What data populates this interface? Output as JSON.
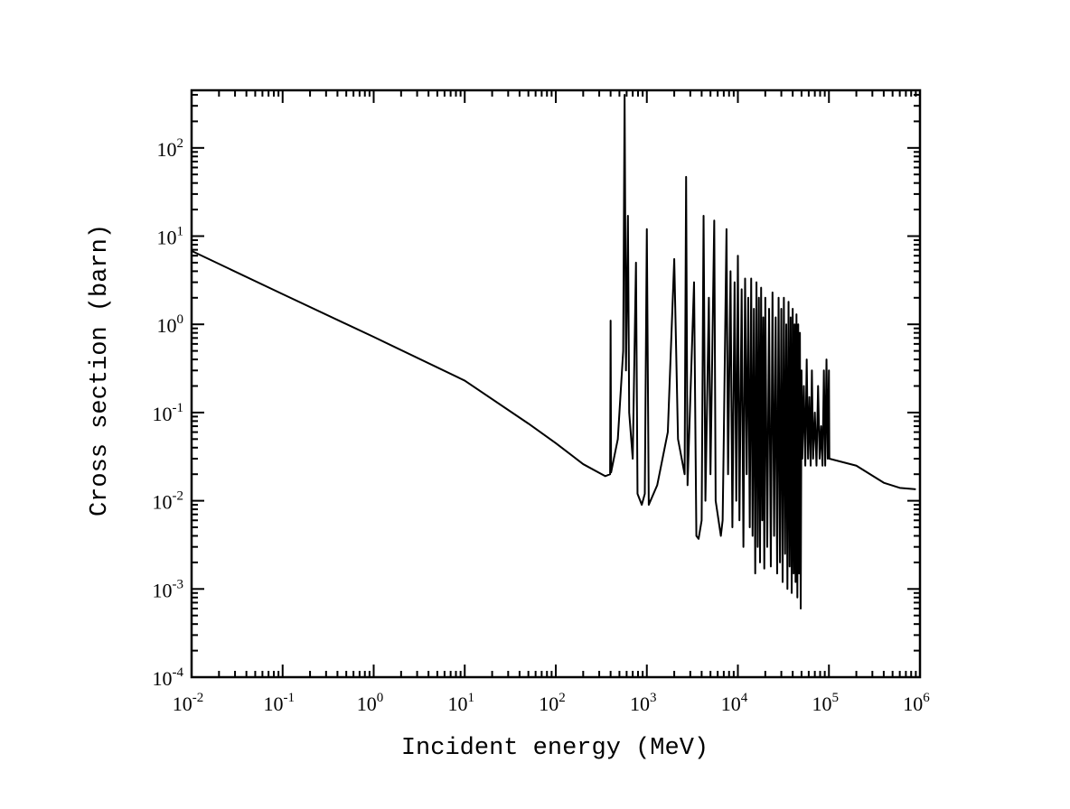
{
  "chart_data": {
    "type": "line",
    "title": "",
    "xlabel": "Incident energy (MeV)",
    "ylabel": "Cross section (barn)",
    "xscale": "log",
    "yscale": "log",
    "xlim": [
      0.01,
      1000000
    ],
    "ylim": [
      0.0001,
      450
    ],
    "grid": false,
    "legend": "none",
    "line_color": "#000000",
    "x_ticks": [
      {
        "base": "10",
        "exp": "-2",
        "value": 0.01
      },
      {
        "base": "10",
        "exp": "-1",
        "value": 0.1
      },
      {
        "base": "10",
        "exp": "0",
        "value": 1
      },
      {
        "base": "10",
        "exp": "1",
        "value": 10
      },
      {
        "base": "10",
        "exp": "2",
        "value": 100
      },
      {
        "base": "10",
        "exp": "3",
        "value": 1000
      },
      {
        "base": "10",
        "exp": "4",
        "value": 10000
      },
      {
        "base": "10",
        "exp": "5",
        "value": 100000
      },
      {
        "base": "10",
        "exp": "6",
        "value": 1000000
      }
    ],
    "y_ticks": [
      {
        "base": "10",
        "exp": "-4",
        "value": 0.0001
      },
      {
        "base": "10",
        "exp": "-3",
        "value": 0.001
      },
      {
        "base": "10",
        "exp": "-2",
        "value": 0.01
      },
      {
        "base": "10",
        "exp": "-1",
        "value": 0.1
      },
      {
        "base": "10",
        "exp": "0",
        "value": 1
      },
      {
        "base": "10",
        "exp": "1",
        "value": 10
      },
      {
        "base": "10",
        "exp": "2",
        "value": 100
      }
    ],
    "series": [
      {
        "name": "cross-section",
        "points": [
          [
            0.01,
            6.8
          ],
          [
            0.1,
            2.2
          ],
          [
            1,
            0.72
          ],
          [
            10,
            0.23
          ],
          [
            50,
            0.075
          ],
          [
            100,
            0.045
          ],
          [
            200,
            0.026
          ],
          [
            350,
            0.019
          ],
          [
            395,
            0.02
          ],
          [
            400,
            1.1
          ],
          [
            405,
            0.021
          ],
          [
            480,
            0.05
          ],
          [
            550,
            0.5
          ],
          [
            570,
            400
          ],
          [
            590,
            0.3
          ],
          [
            620,
            17
          ],
          [
            640,
            0.1
          ],
          [
            700,
            0.03
          ],
          [
            760,
            5
          ],
          [
            790,
            0.012
          ],
          [
            880,
            0.009
          ],
          [
            950,
            0.012
          ],
          [
            1000,
            12
          ],
          [
            1050,
            0.009
          ],
          [
            1300,
            0.015
          ],
          [
            1700,
            0.06
          ],
          [
            2000,
            5.5
          ],
          [
            2200,
            0.05
          ],
          [
            2600,
            0.02
          ],
          [
            2700,
            47
          ],
          [
            2800,
            0.015
          ],
          [
            3300,
            3
          ],
          [
            3500,
            0.004
          ],
          [
            3700,
            0.0037
          ],
          [
            4000,
            0.006
          ],
          [
            4200,
            17
          ],
          [
            4400,
            0.01
          ],
          [
            4800,
            2
          ],
          [
            5000,
            0.02
          ],
          [
            5500,
            15
          ],
          [
            5700,
            0.01
          ],
          [
            6500,
            0.004
          ],
          [
            6800,
            0.006
          ],
          [
            7000,
            0.05
          ],
          [
            7500,
            12
          ],
          [
            7800,
            0.02
          ],
          [
            8300,
            4
          ],
          [
            8700,
            0.005
          ],
          [
            9200,
            3
          ],
          [
            9600,
            0.01
          ],
          [
            10000,
            6
          ],
          [
            10400,
            0.006
          ],
          [
            11000,
            2.5
          ],
          [
            11500,
            0.003
          ],
          [
            12000,
            3.3
          ],
          [
            12500,
            0.02
          ],
          [
            13000,
            2
          ],
          [
            13500,
            0.005
          ],
          [
            14000,
            3.3
          ],
          [
            14500,
            0.004
          ],
          [
            15000,
            1.5
          ],
          [
            15500,
            0.0015
          ],
          [
            16000,
            3
          ],
          [
            16500,
            0.003
          ],
          [
            17000,
            2
          ],
          [
            17500,
            0.002
          ],
          [
            18000,
            2.6
          ],
          [
            18500,
            0.006
          ],
          [
            19000,
            1.2
          ],
          [
            19500,
            0.0017
          ],
          [
            20000,
            2
          ],
          [
            21000,
            0.003
          ],
          [
            22000,
            1.5
          ],
          [
            23000,
            0.0018
          ],
          [
            24000,
            2.3
          ],
          [
            25000,
            0.004
          ],
          [
            26000,
            1.2
          ],
          [
            27000,
            0.0015
          ],
          [
            28000,
            2
          ],
          [
            29000,
            0.002
          ],
          [
            30000,
            1.5
          ],
          [
            31000,
            0.0012
          ],
          [
            32000,
            2
          ],
          [
            33000,
            0.0025
          ],
          [
            34000,
            1
          ],
          [
            35000,
            0.001
          ],
          [
            36000,
            1.8
          ],
          [
            37000,
            0.0018
          ],
          [
            38000,
            1.2
          ],
          [
            39000,
            0.0009
          ],
          [
            40000,
            1.5
          ],
          [
            41000,
            0.0015
          ],
          [
            42000,
            1
          ],
          [
            43000,
            0.0012
          ],
          [
            44000,
            1.3
          ],
          [
            45000,
            0.0008
          ],
          [
            46000,
            1
          ],
          [
            47000,
            0.0015
          ],
          [
            48000,
            0.8
          ],
          [
            49000,
            0.0006
          ],
          [
            50000,
            0.3
          ],
          [
            51000,
            0.03
          ],
          [
            53000,
            0.2
          ],
          [
            55000,
            0.025
          ],
          [
            57000,
            0.4
          ],
          [
            59000,
            0.03
          ],
          [
            61000,
            0.15
          ],
          [
            63000,
            0.025
          ],
          [
            65000,
            0.3
          ],
          [
            67000,
            0.03
          ],
          [
            70000,
            0.1
          ],
          [
            73000,
            0.025
          ],
          [
            76000,
            0.2
          ],
          [
            79000,
            0.03
          ],
          [
            82000,
            0.07
          ],
          [
            85000,
            0.025
          ],
          [
            88000,
            0.3
          ],
          [
            91000,
            0.025
          ],
          [
            94000,
            0.4
          ],
          [
            97000,
            0.03
          ],
          [
            100000,
            0.3
          ],
          [
            101000,
            0.03
          ],
          [
            200000,
            0.025
          ],
          [
            400000,
            0.016
          ],
          [
            600000,
            0.014
          ],
          [
            900000,
            0.0135
          ]
        ]
      }
    ]
  }
}
